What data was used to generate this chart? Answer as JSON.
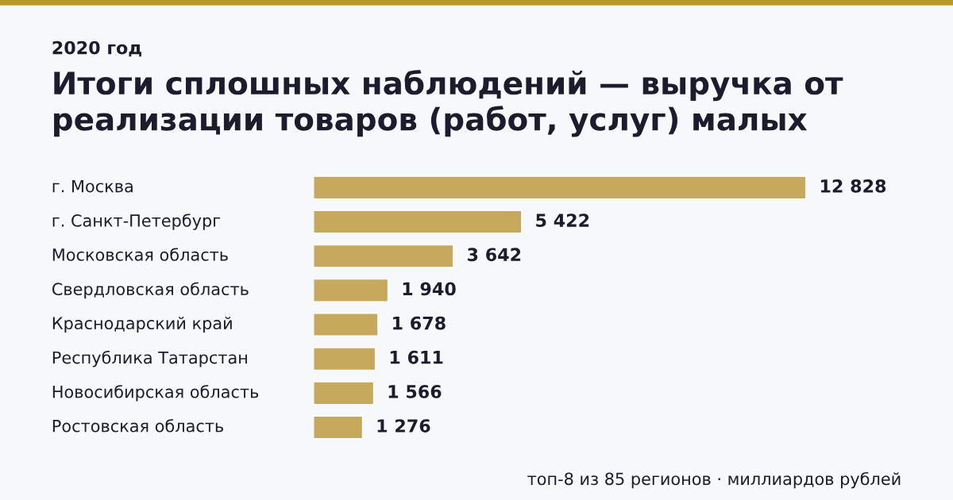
{
  "chart_data": {
    "type": "bar",
    "orientation": "horizontal",
    "subtitle": "2020 год",
    "title": "Итоги сплошных наблюдений — выручка от реализации товаров (работ, услуг) малых",
    "categories": [
      "г. Москва",
      "г. Санкт-Петербург",
      "Московская область",
      "Свердловская область",
      "Краснодарский край",
      "Республика Татарстан",
      "Новосибирская область",
      "Ростовская область"
    ],
    "values": [
      12828,
      5422,
      3642,
      1940,
      1678,
      1611,
      1566,
      1276
    ],
    "value_labels": [
      "12 828",
      "5 422",
      "3 642",
      "1 940",
      "1 678",
      "1 611",
      "1 566",
      "1 276"
    ],
    "color": "#c6a95c",
    "annotations": [
      "топ-8 из 85 регионов · миллиардов рублей"
    ]
  }
}
